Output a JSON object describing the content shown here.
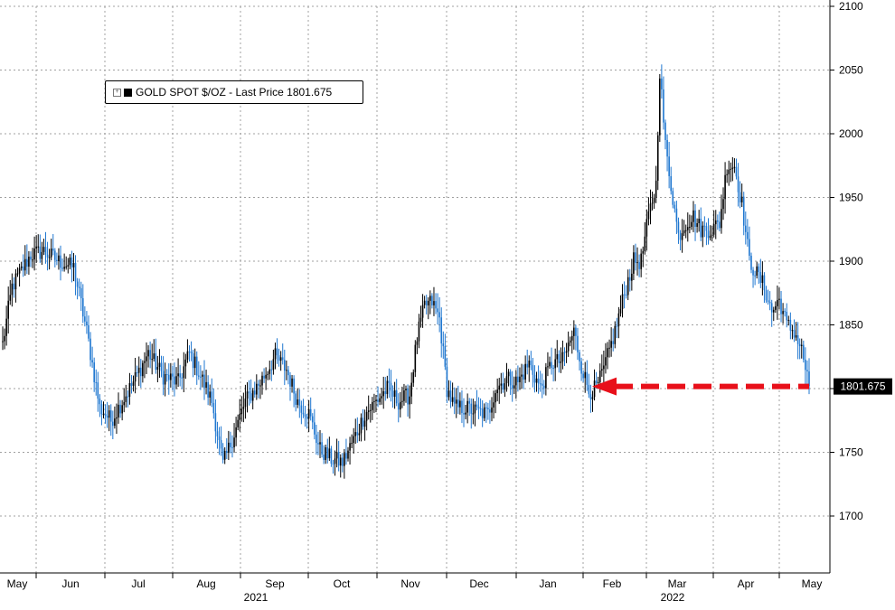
{
  "legend": {
    "label": "GOLD SPOT $/OZ - Last Price 1801.675"
  },
  "colors": {
    "candle_up": "#000000",
    "candle_down": "#1f77d0",
    "grid": "#a0a0a0",
    "arrow": "#e8101a",
    "last_price_box": "#000000"
  },
  "chart_data": {
    "type": "candlestick",
    "title": "",
    "series_name": "GOLD SPOT $/OZ",
    "last_price": 1801.675,
    "last_price_label": "1801.675",
    "y_axis": {
      "position": "right",
      "ylim": [
        1650,
        2100
      ],
      "ticks": [
        1700,
        1750,
        1800,
        1850,
        1900,
        1950,
        2000,
        2050,
        2100
      ]
    },
    "x_axis": {
      "months": [
        "May",
        "Jun",
        "Jul",
        "Aug",
        "Sep",
        "Oct",
        "Nov",
        "Dec",
        "Jan",
        "Feb",
        "Mar",
        "Apr",
        "May"
      ],
      "years": [
        "2021",
        "2022"
      ]
    },
    "grid": "dotted",
    "annotation": {
      "type": "arrow",
      "direction": "left",
      "level": 1801.675,
      "style": "dashed red"
    },
    "price_path": [
      [
        0,
        1835
      ],
      [
        5,
        1880
      ],
      [
        15,
        1905
      ],
      [
        22,
        1908
      ],
      [
        30,
        1900
      ],
      [
        38,
        1895
      ],
      [
        45,
        1845
      ],
      [
        52,
        1785
      ],
      [
        58,
        1775
      ],
      [
        64,
        1790
      ],
      [
        70,
        1805
      ],
      [
        78,
        1828
      ],
      [
        86,
        1810
      ],
      [
        94,
        1805
      ],
      [
        100,
        1828
      ],
      [
        106,
        1810
      ],
      [
        112,
        1790
      ],
      [
        118,
        1740
      ],
      [
        124,
        1765
      ],
      [
        130,
        1790
      ],
      [
        138,
        1805
      ],
      [
        146,
        1825
      ],
      [
        152,
        1815
      ],
      [
        158,
        1790
      ],
      [
        164,
        1780
      ],
      [
        170,
        1752
      ],
      [
        176,
        1745
      ],
      [
        182,
        1742
      ],
      [
        188,
        1760
      ],
      [
        194,
        1780
      ],
      [
        200,
        1790
      ],
      [
        206,
        1800
      ],
      [
        212,
        1790
      ],
      [
        218,
        1795
      ],
      [
        222,
        1840
      ],
      [
        226,
        1865
      ],
      [
        230,
        1868
      ],
      [
        234,
        1855
      ],
      [
        238,
        1800
      ],
      [
        242,
        1785
      ],
      [
        248,
        1785
      ],
      [
        254,
        1782
      ],
      [
        260,
        1780
      ],
      [
        264,
        1800
      ],
      [
        270,
        1808
      ],
      [
        276,
        1805
      ],
      [
        282,
        1820
      ],
      [
        288,
        1800
      ],
      [
        294,
        1820
      ],
      [
        300,
        1822
      ],
      [
        306,
        1845
      ],
      [
        310,
        1818
      ],
      [
        314,
        1798
      ],
      [
        318,
        1800
      ],
      [
        322,
        1815
      ],
      [
        328,
        1845
      ],
      [
        334,
        1880
      ],
      [
        338,
        1900
      ],
      [
        342,
        1900
      ],
      [
        346,
        1935
      ],
      [
        350,
        1960
      ],
      [
        352,
        2050
      ],
      [
        355,
        1990
      ],
      [
        358,
        1960
      ],
      [
        362,
        1920
      ],
      [
        366,
        1930
      ],
      [
        370,
        1935
      ],
      [
        374,
        1925
      ],
      [
        380,
        1925
      ],
      [
        384,
        1930
      ],
      [
        388,
        1975
      ],
      [
        392,
        1975
      ],
      [
        396,
        1945
      ],
      [
        400,
        1900
      ],
      [
        404,
        1890
      ],
      [
        408,
        1880
      ],
      [
        412,
        1860
      ],
      [
        416,
        1870
      ],
      [
        420,
        1850
      ],
      [
        424,
        1845
      ],
      [
        428,
        1830
      ],
      [
        432,
        1802
      ]
    ]
  }
}
